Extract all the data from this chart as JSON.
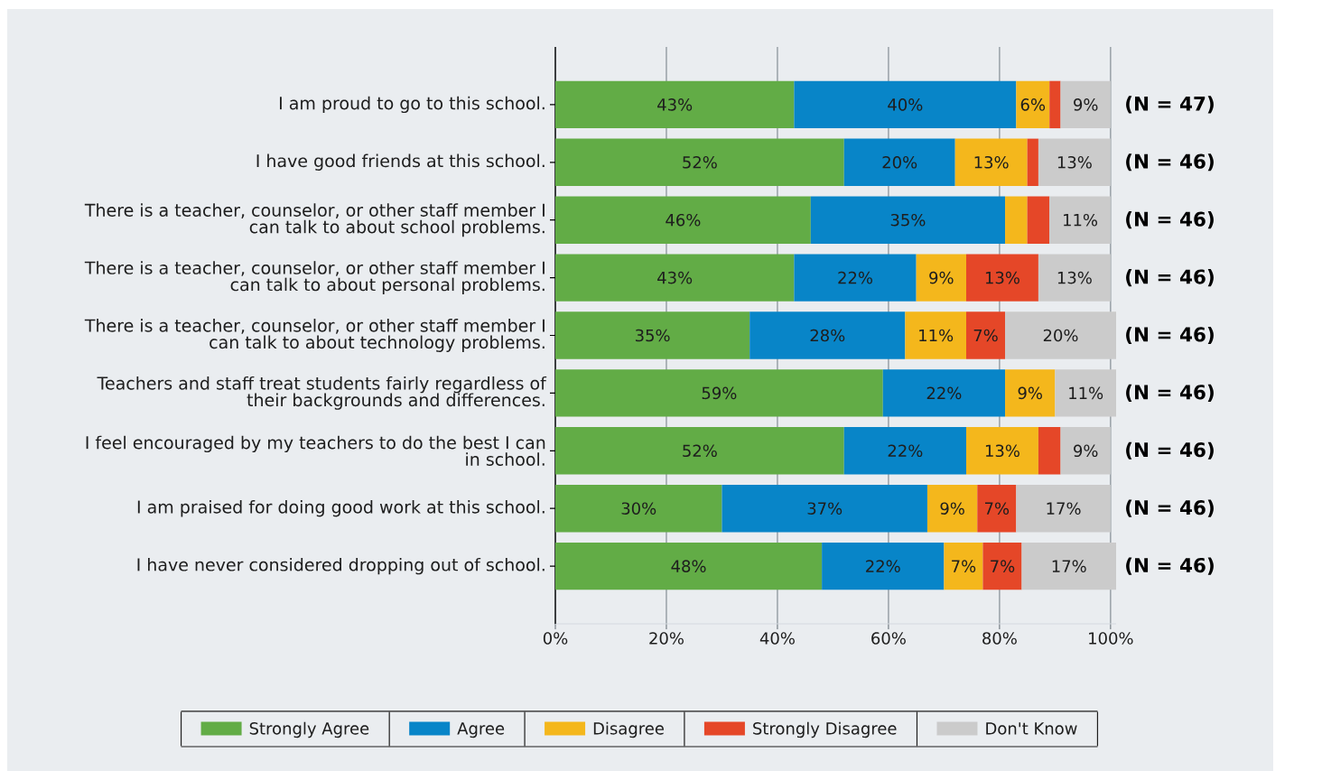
{
  "chart_data": {
    "type": "bar",
    "orientation": "horizontal",
    "stacked": true,
    "categories": [
      "I am proud to go to this school.",
      "I have good friends at this school.",
      "There is a teacher, counselor, or other staff member I can talk to about school problems.",
      "There is a teacher, counselor, or other staff member I can talk to about personal problems.",
      "There is a teacher, counselor, or other staff member I can talk to about technology problems.",
      "Teachers and staff treat students fairly regardless of their backgrounds and differences.",
      "I feel encouraged by my teachers to do the best I can in school.",
      "I am praised for doing good work at this school.",
      "I have never considered dropping out of school."
    ],
    "series": [
      {
        "name": "Strongly Agree",
        "color": "#62ac46",
        "values": [
          43,
          52,
          46,
          43,
          35,
          59,
          52,
          30,
          48
        ],
        "value_labels": [
          "43%",
          "52%",
          "46%",
          "43%",
          "35%",
          "59%",
          "52%",
          "30%",
          "48%"
        ]
      },
      {
        "name": "Agree",
        "color": "#0885c8",
        "values": [
          40,
          20,
          35,
          22,
          28,
          22,
          22,
          37,
          22
        ],
        "value_labels": [
          "40%",
          "20%",
          "35%",
          "22%",
          "28%",
          "22%",
          "22%",
          "37%",
          "22%"
        ]
      },
      {
        "name": "Disagree",
        "color": "#f4b71c",
        "values": [
          6,
          13,
          4,
          9,
          11,
          9,
          13,
          9,
          7
        ],
        "value_labels": [
          "6%",
          "13%",
          null,
          "9%",
          "11%",
          "9%",
          "13%",
          "9%",
          "7%"
        ]
      },
      {
        "name": "Strongly Disagree",
        "color": "#e54728",
        "values": [
          2,
          2,
          4,
          13,
          7,
          null,
          4,
          7,
          7
        ],
        "value_labels": [
          null,
          null,
          null,
          "13%",
          "7%",
          null,
          null,
          "7%",
          "7%"
        ]
      },
      {
        "name": "Don't Know",
        "color": "#cbcbcb",
        "values": [
          9,
          13,
          11,
          13,
          20,
          11,
          9,
          17,
          17
        ],
        "value_labels": [
          "9%",
          "13%",
          "11%",
          "13%",
          "20%",
          "11%",
          "9%",
          "17%",
          "17%"
        ]
      }
    ],
    "xlim": [
      0,
      101
    ],
    "xticks": [
      {
        "value": 0,
        "label": "0%"
      },
      {
        "value": 20,
        "label": "20%"
      },
      {
        "value": 40,
        "label": "40%"
      },
      {
        "value": 60,
        "label": "60%"
      },
      {
        "value": 80,
        "label": "80%"
      },
      {
        "value": 100,
        "label": "100%"
      }
    ],
    "grid": "x",
    "legend": "bottom",
    "annotations": [
      "(N = 47)",
      "(N = 46)",
      "(N = 46)",
      "(N = 46)",
      "(N = 46)",
      "(N = 46)",
      "(N = 46)",
      "(N = 46)",
      "(N = 46)"
    ]
  }
}
